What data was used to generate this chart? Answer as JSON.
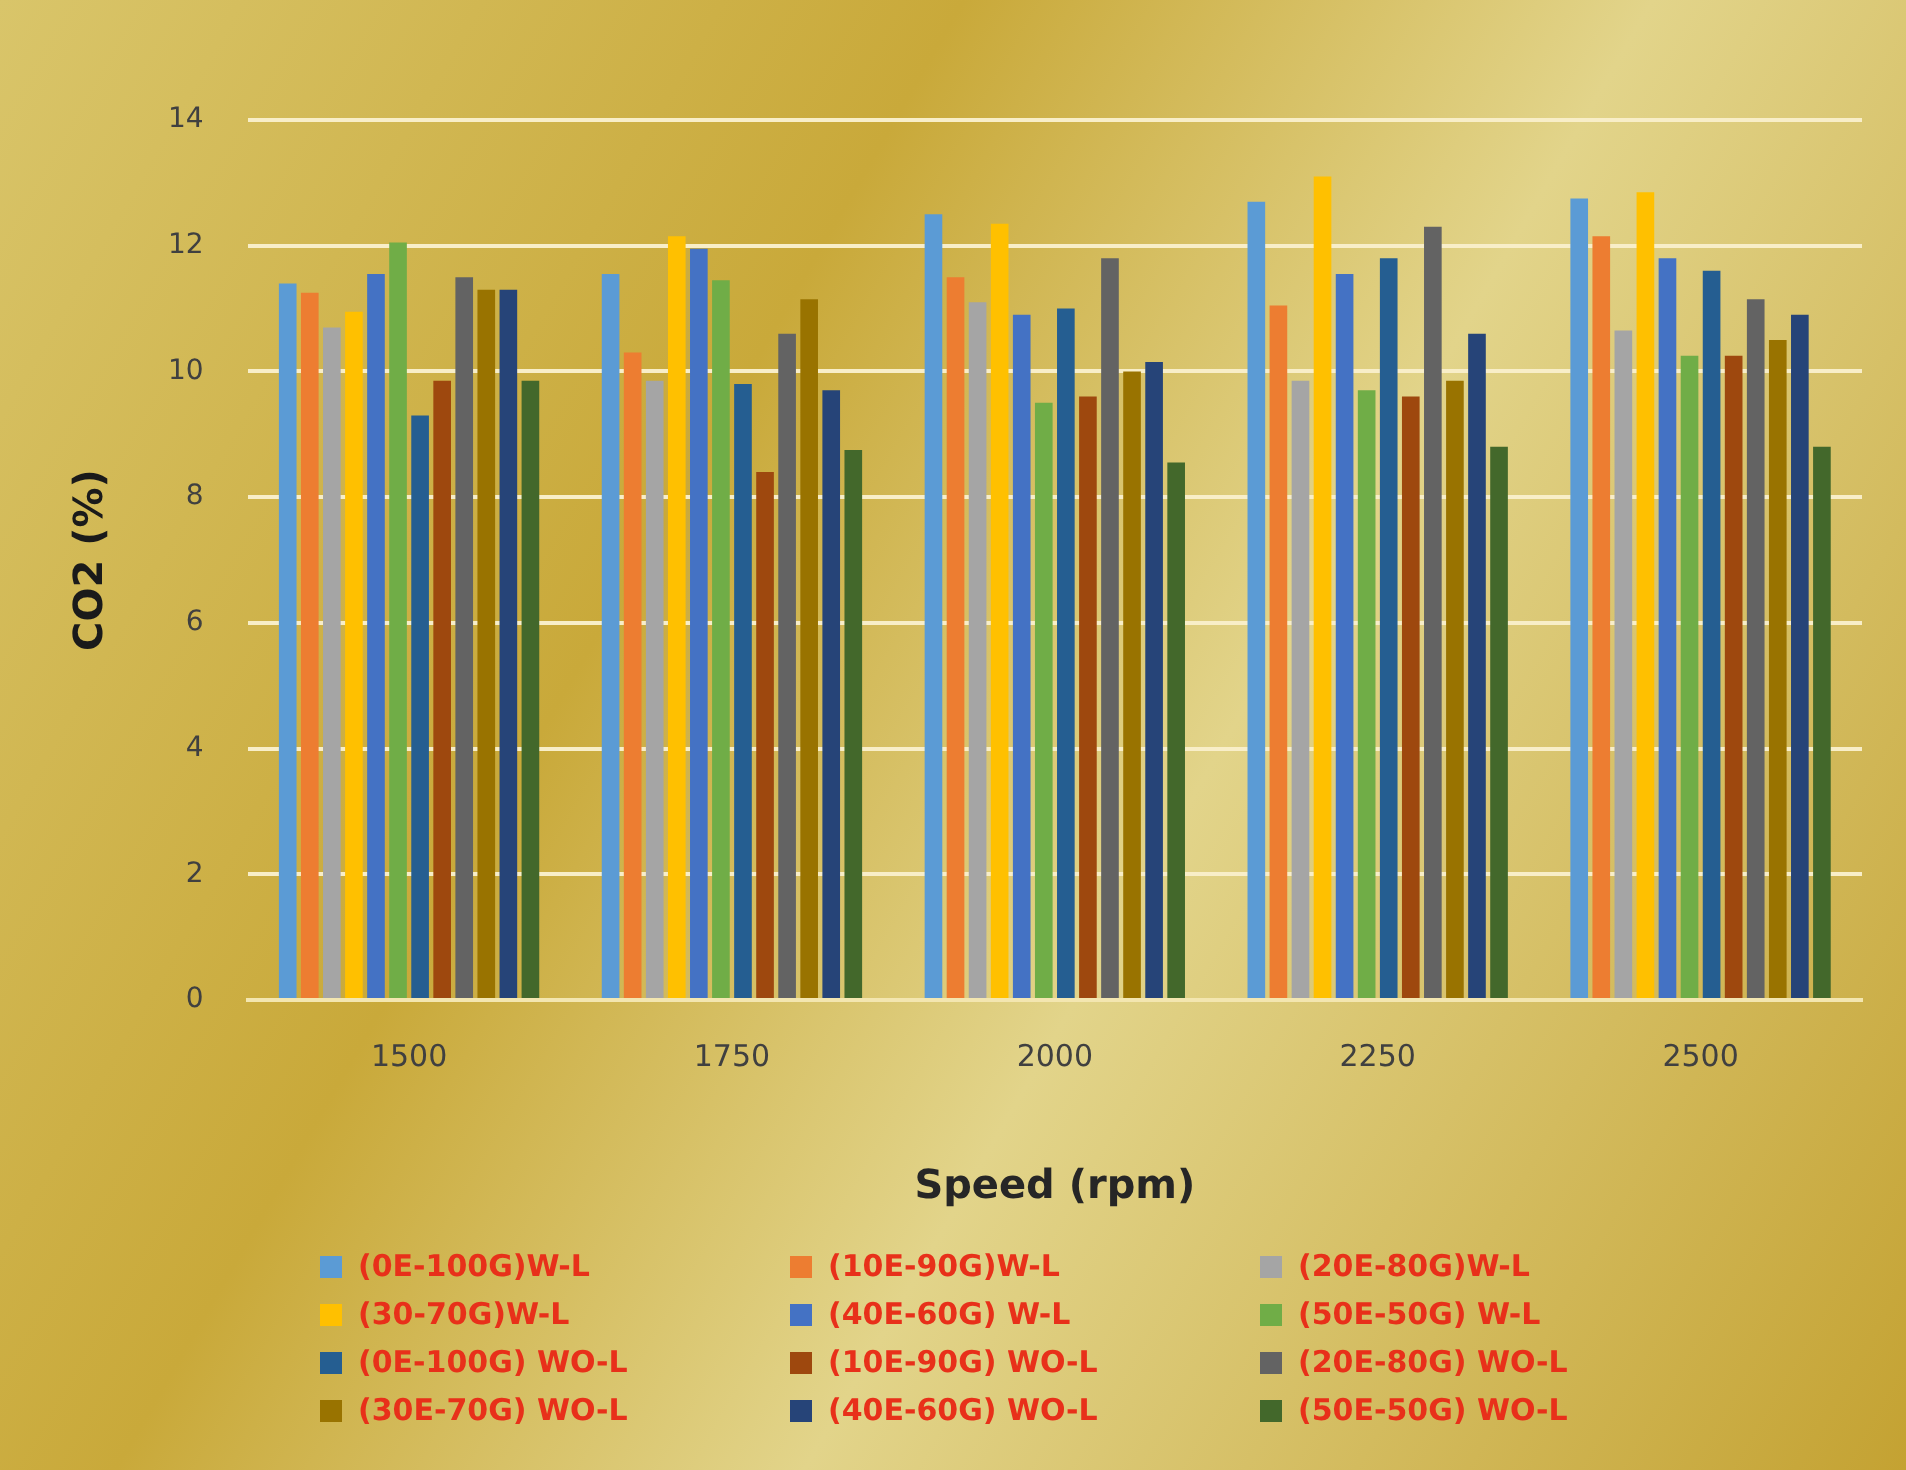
{
  "chart_data": {
    "type": "bar",
    "xlabel": "Speed (rpm)",
    "ylabel": "CO2 (%)",
    "categories": [
      "1500",
      "1750",
      "2000",
      "2250",
      "2500"
    ],
    "ylim": [
      0,
      14
    ],
    "yticks": [
      0,
      2,
      4,
      6,
      8,
      10,
      12,
      14
    ],
    "grid": "y",
    "legend": "bottom",
    "series": [
      {
        "name": "(0E-100G)W-L",
        "color": "#5b9bd5",
        "values": [
          11.4,
          11.55,
          12.5,
          12.7,
          12.75
        ]
      },
      {
        "name": "(10E-90G)W-L",
        "color": "#ed7d31",
        "values": [
          11.25,
          10.3,
          11.5,
          11.05,
          12.15
        ]
      },
      {
        "name": "(20E-80G)W-L",
        "color": "#a5a5a5",
        "values": [
          10.7,
          9.85,
          11.1,
          9.85,
          10.65
        ]
      },
      {
        "name": "(30-70G)W-L",
        "color": "#ffc000",
        "values": [
          10.95,
          12.15,
          12.35,
          13.1,
          12.85
        ]
      },
      {
        "name": "(40E-60G) W-L",
        "color": "#4472c4",
        "values": [
          11.55,
          11.95,
          10.9,
          11.55,
          11.8
        ]
      },
      {
        "name": "(50E-50G) W-L",
        "color": "#70ad47",
        "values": [
          12.05,
          11.45,
          9.5,
          9.7,
          10.25
        ]
      },
      {
        "name": "(0E-100G) WO-L",
        "color": "#255e91",
        "values": [
          9.3,
          9.8,
          11.0,
          11.8,
          11.6
        ]
      },
      {
        "name": "(10E-90G) WO-L",
        "color": "#9e480e",
        "values": [
          9.85,
          8.4,
          9.6,
          9.6,
          10.25
        ]
      },
      {
        "name": "(20E-80G) WO-L",
        "color": "#636363",
        "values": [
          11.5,
          10.6,
          11.8,
          12.3,
          11.15
        ]
      },
      {
        "name": "(30E-70G) WO-L",
        "color": "#997300",
        "values": [
          11.3,
          11.15,
          10.0,
          9.85,
          10.5
        ]
      },
      {
        "name": "(40E-60G) WO-L",
        "color": "#264478",
        "values": [
          11.3,
          9.7,
          10.15,
          10.6,
          10.9
        ]
      },
      {
        "name": "(50E-50G) WO-L",
        "color": "#43682b",
        "values": [
          9.85,
          8.75,
          8.55,
          8.8,
          8.8
        ]
      }
    ]
  }
}
